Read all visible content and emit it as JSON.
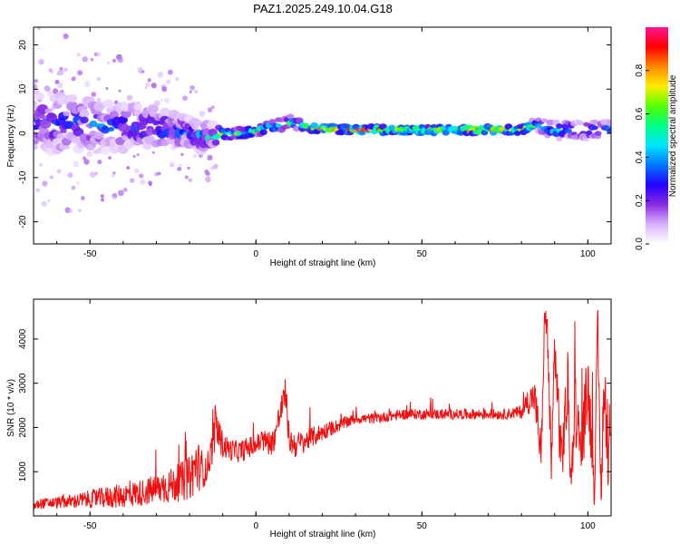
{
  "figure_title": "PAZ1.2025.249.10.04.G18",
  "chart_data": [
    {
      "type": "heatmap",
      "title": "",
      "xlabel": "Height of straight line (km)",
      "ylabel": "Frequency (Hz)",
      "xlim": [
        -67,
        107
      ],
      "ylim": [
        -25,
        24
      ],
      "xticks": [
        -50,
        0,
        50,
        100
      ],
      "yticks": [
        -20,
        -10,
        0,
        10,
        20
      ],
      "colorbar": {
        "label": "Normalized spectral amplitude",
        "ticks": [
          0.0,
          0.2,
          0.4,
          0.6,
          0.8
        ],
        "tick_labels": [
          "0.0",
          "0.2",
          "0.4",
          "0.6",
          "0.8"
        ],
        "range": [
          0,
          1
        ],
        "colormap": [
          "#ffffff",
          "#d9b3ff",
          "#8a2be2",
          "#2200ff",
          "#0077ff",
          "#00e5ff",
          "#00ff88",
          "#55ff00",
          "#ffee00",
          "#ff8800",
          "#ff0000",
          "#ff1493"
        ]
      },
      "ridge": {
        "x": [
          -65,
          -55,
          -45,
          -35,
          -25,
          -15,
          -10,
          -5,
          0,
          5,
          10,
          15,
          20,
          30,
          40,
          50,
          60,
          70,
          80,
          85,
          90,
          95,
          100,
          105
        ],
        "freq": [
          2.5,
          2,
          1.5,
          1.5,
          1,
          -1,
          0,
          0,
          0.5,
          1.5,
          2.5,
          1.5,
          1,
          0.8,
          0.8,
          0.8,
          0.8,
          0.8,
          0.8,
          2,
          0.5,
          1,
          0.5,
          1
        ],
        "amplitude": [
          0.35,
          0.4,
          0.42,
          0.45,
          0.45,
          0.5,
          0.75,
          0.8,
          0.8,
          0.75,
          0.6,
          0.8,
          0.95,
          0.95,
          0.85,
          0.85,
          0.85,
          0.95,
          0.9,
          0.55,
          0.55,
          0.5,
          0.5,
          0.45
        ],
        "spread": [
          9,
          8,
          7,
          6,
          5,
          4,
          2,
          1.5,
          1.2,
          1.5,
          2,
          1.5,
          1,
          1,
          1,
          1,
          1,
          1,
          1,
          2,
          2.5,
          2.5,
          2.5,
          2.5
        ]
      },
      "series_color": "#ff0000"
    },
    {
      "type": "line",
      "title": "",
      "xlabel": "Height of straight line (km)",
      "ylabel": "SNR (10 * v/v)",
      "xlim": [
        -67,
        107
      ],
      "ylim": [
        0,
        4900
      ],
      "xticks": [
        -50,
        0,
        50,
        100
      ],
      "yticks": [
        1000,
        2000,
        3000,
        4000
      ],
      "color": "#ee1111",
      "x": [
        -67,
        -65,
        -60,
        -55,
        -50,
        -45,
        -40,
        -35,
        -30,
        -25,
        -20,
        -18,
        -15,
        -13,
        -12,
        -10,
        -8,
        -5,
        -2,
        0,
        2,
        5,
        8,
        9,
        10,
        12,
        15,
        20,
        25,
        30,
        35,
        40,
        45,
        50,
        55,
        60,
        65,
        70,
        75,
        80,
        82,
        84,
        86,
        87,
        88,
        89,
        90,
        92,
        94,
        95,
        96,
        98,
        100,
        102,
        103,
        104,
        105,
        106,
        107
      ],
      "values": [
        200,
        280,
        300,
        330,
        380,
        420,
        460,
        520,
        600,
        700,
        850,
        1150,
        1000,
        1600,
        2000,
        1600,
        1500,
        1450,
        1550,
        1600,
        1700,
        1650,
        2500,
        2800,
        1700,
        1600,
        1700,
        1900,
        2050,
        2200,
        2200,
        2250,
        2300,
        2300,
        2300,
        2300,
        2300,
        2300,
        2300,
        2350,
        2600,
        2700,
        1300,
        4700,
        3800,
        900,
        3900,
        1200,
        2900,
        600,
        2600,
        1400,
        3000,
        700,
        4000,
        400,
        3300,
        1000,
        2100
      ],
      "noise": [
        120,
        120,
        130,
        160,
        200,
        250,
        280,
        300,
        350,
        400,
        500,
        650,
        300,
        400,
        500,
        300,
        250,
        250,
        250,
        250,
        250,
        300,
        350,
        350,
        300,
        300,
        250,
        200,
        150,
        120,
        120,
        120,
        120,
        120,
        120,
        120,
        120,
        120,
        120,
        150,
        300,
        400,
        600,
        200,
        700,
        500,
        800,
        700,
        900,
        500,
        800,
        700,
        900,
        500,
        900,
        400,
        800,
        700,
        600
      ]
    }
  ]
}
